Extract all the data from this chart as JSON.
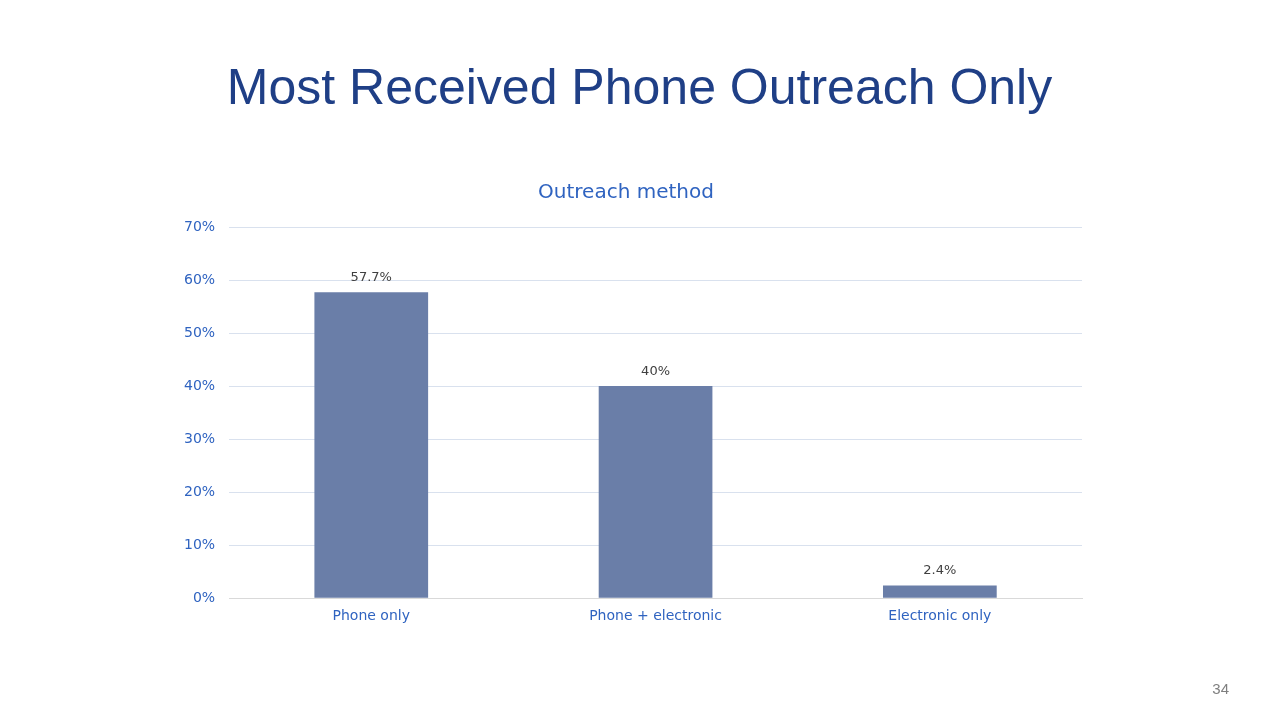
{
  "chart_data": {
    "type": "bar",
    "title": "Most Received Phone Outreach Only",
    "subtitle": "Outreach method",
    "categories": [
      "Phone only",
      "Phone + electronic",
      "Electronic only"
    ],
    "values": [
      57.7,
      40,
      2.4
    ],
    "value_labels": [
      "57.7%",
      "40%",
      "2.4%"
    ],
    "color": "#6a7ea8",
    "ylim": [
      0,
      70
    ],
    "yticks": [
      {
        "value": 0,
        "label": "0%"
      },
      {
        "value": 10,
        "label": "10%"
      },
      {
        "value": 20,
        "label": "20%"
      },
      {
        "value": 30,
        "label": "30%"
      },
      {
        "value": 40,
        "label": "40%"
      },
      {
        "value": 50,
        "label": "50%"
      },
      {
        "value": 60,
        "label": "60%"
      },
      {
        "value": 70,
        "label": "70%"
      }
    ],
    "grid": "y",
    "legend": false,
    "annotations": [
      "34"
    ]
  }
}
